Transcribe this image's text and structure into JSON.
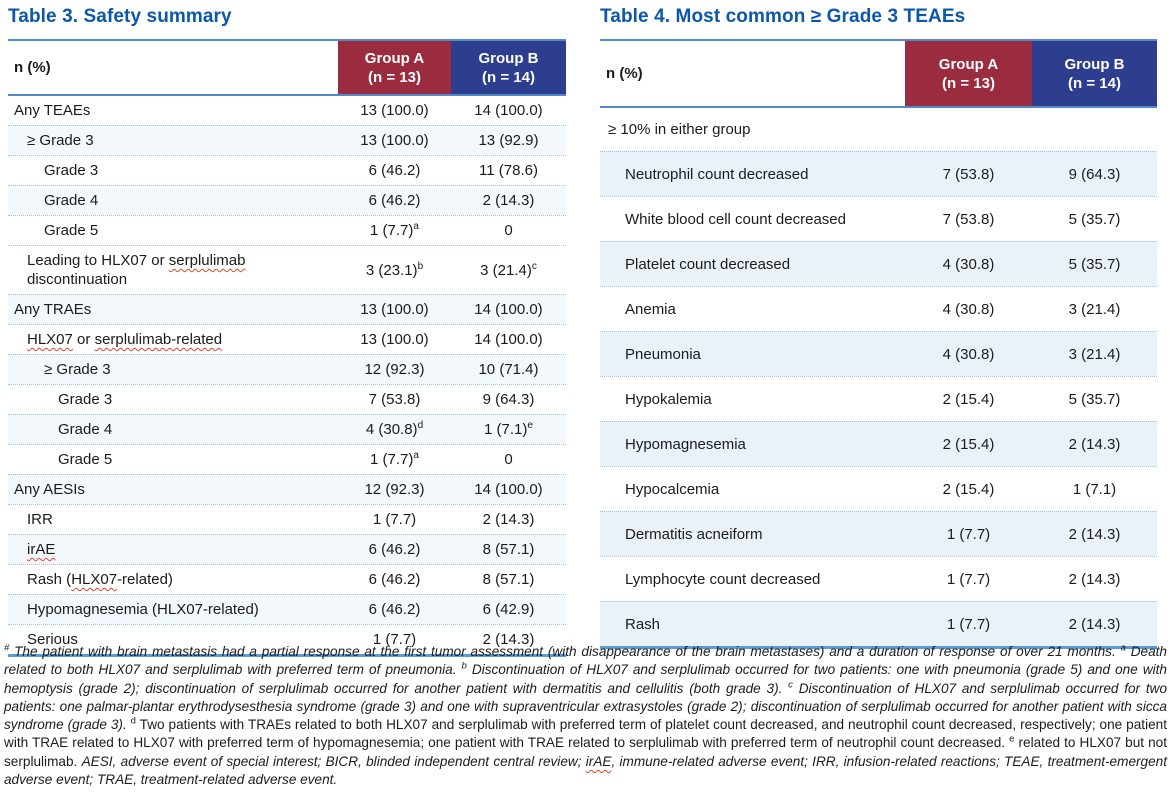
{
  "colors": {
    "title_blue": "#0b57ac",
    "group_a_red": "#9b2b3e",
    "group_b_blue": "#2d3e8f",
    "rule_blue": "#5289c9",
    "bottom_rule_blue": "#5b9bd5",
    "dotted_separator": "#9ec5e8",
    "table3_shade": "#f3f8fd",
    "table4_shade": "#eaf2f9"
  },
  "table3": {
    "title": "Table 3. Safety summary",
    "header": {
      "label": "n (%)",
      "group_a_line1": "Group A",
      "group_a_line2": "(n = 13)",
      "group_b_line1": "Group B",
      "group_b_line2": "(n = 14)"
    },
    "rows": [
      {
        "label": "Any TEAEs",
        "indent": 0,
        "a": "13 (100.0)",
        "b": "14 (100.0)",
        "shaded": false
      },
      {
        "label": "≥ Grade 3",
        "indent": 1,
        "a": "13 (100.0)",
        "b": "13 (92.9)",
        "shaded": true
      },
      {
        "label": "Grade 3",
        "indent": 2,
        "a": "6 (46.2)",
        "b": "11 (78.6)",
        "shaded": false
      },
      {
        "label": "Grade 4",
        "indent": 2,
        "a": "6 (46.2)",
        "b": "2 (14.3)",
        "shaded": true
      },
      {
        "label": "Grade 5",
        "indent": 2,
        "a": "1 (7.7)",
        "a_sup": "a",
        "b": "0",
        "shaded": false
      },
      {
        "label": "Leading to HLX07 or ~serplulimab~ discontinuation",
        "indent": 1,
        "a": "3 (23.1)",
        "a_sup": "b",
        "b": "3 (21.4)",
        "b_sup": "c",
        "shaded": false,
        "tall": true
      },
      {
        "label": "Any TRAEs",
        "indent": 0,
        "a": "13 (100.0)",
        "b": "14 (100.0)",
        "shaded": true
      },
      {
        "label": "~HLX07~ or ~serplulimab-related~",
        "indent": 1,
        "a": "13 (100.0)",
        "b": "14 (100.0)",
        "shaded": false
      },
      {
        "label": "≥ Grade 3",
        "indent": 2,
        "a": "12 (92.3)",
        "b": "10 (71.4)",
        "shaded": true
      },
      {
        "label": "Grade 3",
        "indent": 3,
        "a": "7 (53.8)",
        "b": "9 (64.3)",
        "shaded": false
      },
      {
        "label": "Grade 4",
        "indent": 3,
        "a": "4 (30.8)",
        "a_sup": "d",
        "b": "1 (7.1)",
        "b_sup": "e",
        "shaded": true
      },
      {
        "label": "Grade 5",
        "indent": 3,
        "a": "1 (7.7)",
        "a_sup": "a",
        "b": "0",
        "shaded": false
      },
      {
        "label": "Any AESIs",
        "indent": 0,
        "a": "12 (92.3)",
        "b": "14 (100.0)",
        "shaded": true
      },
      {
        "label": "IRR",
        "indent": 1,
        "a": "1 (7.7)",
        "b": "2 (14.3)",
        "shaded": false
      },
      {
        "label": "~irAE~",
        "indent": 1,
        "a": "6 (46.2)",
        "b": "8 (57.1)",
        "shaded": true
      },
      {
        "label": "Rash (~HLX07~-related)",
        "indent": 1,
        "a": "6 (46.2)",
        "b": "8 (57.1)",
        "shaded": false
      },
      {
        "label": "Hypomagnesemia (HLX07-related)",
        "indent": 1,
        "a": "6 (46.2)",
        "b": "6 (42.9)",
        "shaded": true
      },
      {
        "label": "Serious",
        "indent": 1,
        "a": "1 (7.7)",
        "b": "2 (14.3)",
        "shaded": false
      }
    ]
  },
  "table4": {
    "title": "Table 4. Most common ≥ Grade 3 TEAEs",
    "header": {
      "label": "n (%)",
      "group_a_line1": "Group A",
      "group_a_line2": "(n = 13)",
      "group_b_line1": "Group B",
      "group_b_line2": "(n = 14)"
    },
    "subheader": "≥ 10% in either group",
    "rows": [
      {
        "label": "Neutrophil count decreased",
        "indent": 1,
        "a": "7 (53.8)",
        "b": "9 (64.3)",
        "shaded": true
      },
      {
        "label": "White blood cell count decreased",
        "indent": 1,
        "a": "7 (53.8)",
        "b": "5 (35.7)",
        "shaded": false
      },
      {
        "label": "Platelet count decreased",
        "indent": 1,
        "a": "4 (30.8)",
        "b": "5 (35.7)",
        "shaded": true
      },
      {
        "label": "Anemia",
        "indent": 1,
        "a": "4 (30.8)",
        "b": "3 (21.4)",
        "shaded": false
      },
      {
        "label": "Pneumonia",
        "indent": 1,
        "a": "4 (30.8)",
        "b": "3 (21.4)",
        "shaded": true
      },
      {
        "label": "Hypokalemia",
        "indent": 1,
        "a": "2 (15.4)",
        "b": "5 (35.7)",
        "shaded": false
      },
      {
        "label": "Hypomagnesemia",
        "indent": 1,
        "a": "2 (15.4)",
        "b": "2 (14.3)",
        "shaded": true
      },
      {
        "label": "Hypocalcemia",
        "indent": 1,
        "a": "2 (15.4)",
        "b": "1 (7.1)",
        "shaded": false
      },
      {
        "label": "Dermatitis acneiform",
        "indent": 1,
        "a": "1 (7.7)",
        "b": "2 (14.3)",
        "shaded": true
      },
      {
        "label": "Lymphocyte count decreased",
        "indent": 1,
        "a": "1 (7.7)",
        "b": "2 (14.3)",
        "shaded": false
      },
      {
        "label": "Rash",
        "indent": 1,
        "a": "1 (7.7)",
        "b": "2 (14.3)",
        "shaded": true
      }
    ]
  },
  "footnote": {
    "segments": [
      {
        "sup": "#",
        "italic": true,
        "text": "The patient with brain metastasis had a partial response at the first tumor assessment (with disappearance of the brain metastases) and a duration of response of over 21 months. "
      },
      {
        "sup": "a",
        "italic": true,
        "text": "Death related to both HLX07 and serplulimab with preferred term of pneumonia. "
      },
      {
        "sup": "b",
        "italic": true,
        "text": "Discontinuation of HLX07 and serplulimab occurred for two patients: one with pneumonia (grade 5) and one with hemoptysis (grade 2); discontinuation of serplulimab occurred for another patient with dermatitis and cellulitis (both grade 3). "
      },
      {
        "sup": "c",
        "italic": true,
        "text": "Discontinuation of HLX07 and serplulimab occurred for two patients: one palmar-plantar erythrodysesthesia syndrome (grade 3) and one with supraventricular extrasystoles (grade 2); discontinuation of serplulimab occurred for another patient with sicca syndrome (grade 3). "
      },
      {
        "sup": "d",
        "italic": false,
        "text": "Two patients with TRAEs related to both HLX07 and serplulimab with preferred term of platelet count decreased, and neutrophil count decreased, respectively; one patient with TRAE related to HLX07 with preferred term of hypomagnesemia; one patient with TRAE related to serplulimab with preferred term of neutrophil count decreased. "
      },
      {
        "sup": "e",
        "italic": false,
        "text": "related to HLX07 but not serplulimab. "
      },
      {
        "italic": true,
        "text": "AESI, adverse event of special interest; BICR, blinded independent central review; ~irAE~, immune-related adverse event; IRR, infusion-related reactions; TEAE, treatment-emergent adverse event; TRAE, treatment-related adverse event."
      }
    ]
  }
}
